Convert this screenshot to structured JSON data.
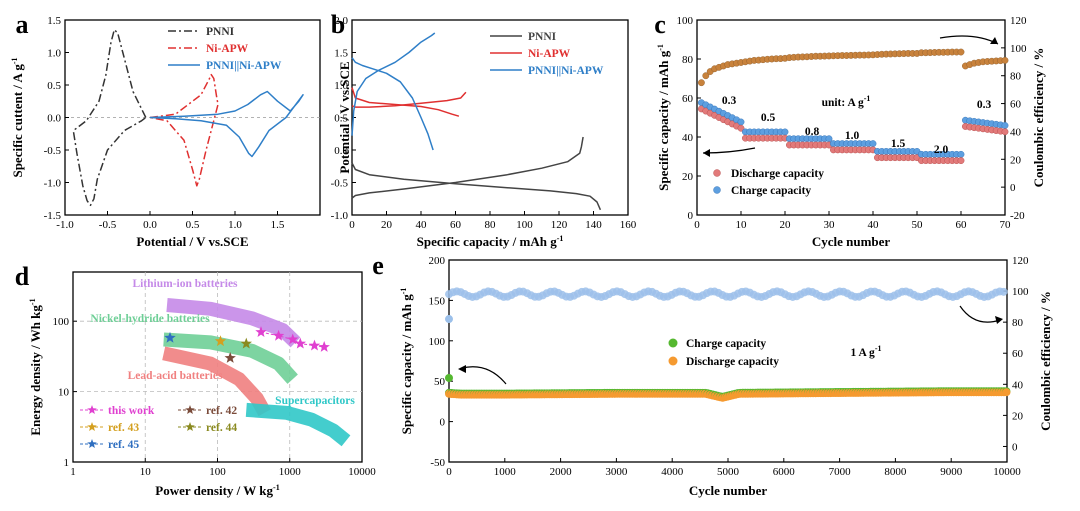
{
  "chart_data": [
    {
      "panel": "a",
      "type": "line",
      "xlabel": "Potential / V vs.SCE",
      "ylabel": "Specific cuttent / A g",
      "ylabel_sup": "-1",
      "xlim": [
        -1.0,
        2.0
      ],
      "ylim": [
        -1.5,
        1.5
      ],
      "xticks": [
        "-1.0",
        "-0.5",
        "0.0",
        "0.5",
        "1.0",
        "1.5"
      ],
      "yticks": [
        "-1.5",
        "-1.0",
        "-0.5",
        "0.0",
        "0.5",
        "1.0",
        "1.5"
      ],
      "series": [
        {
          "name": "PNNI",
          "color": "#333333",
          "dash": "dashdot",
          "x": [
            -0.05,
            -0.2,
            -0.32,
            -0.38,
            -0.42,
            -0.46,
            -0.52,
            -0.6,
            -0.75,
            -0.88,
            -0.9,
            -0.86,
            -0.79,
            -0.74,
            -0.7,
            -0.66,
            -0.62,
            -0.5,
            -0.3,
            -0.1,
            -0.05
          ],
          "y": [
            0.0,
            0.4,
            1.0,
            1.3,
            1.35,
            1.15,
            0.65,
            0.25,
            -0.05,
            -0.18,
            -0.22,
            -0.55,
            -1.05,
            -1.28,
            -1.35,
            -1.25,
            -0.95,
            -0.5,
            -0.2,
            -0.05,
            0.0
          ]
        },
        {
          "name": "Ni-APW",
          "color": "#e03030",
          "dash": "dashdot",
          "x": [
            0.0,
            0.3,
            0.6,
            0.7,
            0.72,
            0.75,
            0.78,
            0.8,
            0.76,
            0.66,
            0.58,
            0.55,
            0.5,
            0.4,
            0.2,
            0.0
          ],
          "y": [
            0.0,
            0.05,
            0.35,
            0.6,
            0.66,
            0.6,
            0.35,
            0.2,
            0.0,
            -0.5,
            -0.95,
            -1.05,
            -0.8,
            -0.35,
            -0.05,
            0.0
          ]
        },
        {
          "name": "PNNI||Ni-APW",
          "color": "#2f7fc8",
          "dash": "solid",
          "x": [
            0.0,
            0.4,
            0.8,
            1.0,
            1.15,
            1.3,
            1.38,
            1.5,
            1.65,
            1.75,
            1.8,
            1.6,
            1.4,
            1.28,
            1.2,
            1.16,
            1.05,
            0.9,
            0.6,
            0.3,
            0.0
          ],
          "y": [
            0.0,
            0.02,
            0.05,
            0.1,
            0.2,
            0.35,
            0.4,
            0.25,
            0.1,
            0.25,
            0.35,
            0.0,
            -0.2,
            -0.45,
            -0.6,
            -0.55,
            -0.3,
            -0.12,
            -0.05,
            -0.02,
            0.0
          ]
        }
      ]
    },
    {
      "panel": "b",
      "type": "line",
      "xlabel": "Specific capacity / mAh g",
      "xlabel_sup": "-1",
      "ylabel": "Potential / V vs.SCE",
      "xlim": [
        0,
        160
      ],
      "ylim": [
        -1.0,
        2.0
      ],
      "xticks": [
        "0",
        "20",
        "40",
        "60",
        "80",
        "100",
        "120",
        "140",
        "160"
      ],
      "yticks": [
        "-1.0",
        "-0.5",
        "0.0",
        "0.5",
        "1.0",
        "1.5",
        "2.0"
      ],
      "series": [
        {
          "name": "PNNI",
          "color": "#444444",
          "dash": "solid",
          "x": [
            0,
            2,
            10,
            30,
            60,
            90,
            110,
            125,
            132,
            133,
            134
          ],
          "y": [
            -0.74,
            -0.7,
            -0.66,
            -0.6,
            -0.5,
            -0.38,
            -0.28,
            -0.18,
            -0.05,
            0.05,
            0.2
          ]
        },
        {
          "name": "PNNI",
          "color": "#444444",
          "dash": "solid",
          "x": [
            0,
            2,
            10,
            30,
            60,
            90,
            115,
            130,
            138,
            142,
            144
          ],
          "y": [
            -0.2,
            -0.3,
            -0.38,
            -0.45,
            -0.52,
            -0.58,
            -0.63,
            -0.67,
            -0.71,
            -0.8,
            -0.92
          ]
        },
        {
          "name": "Ni-APW",
          "color": "#e03030",
          "dash": "solid",
          "x": [
            0,
            2,
            10,
            25,
            40,
            55,
            63,
            66
          ],
          "y": [
            0.68,
            0.66,
            0.66,
            0.68,
            0.72,
            0.76,
            0.8,
            0.89
          ]
        },
        {
          "name": "Ni-APW",
          "color": "#e03030",
          "dash": "solid",
          "x": [
            0,
            2,
            10,
            25,
            40,
            50,
            58,
            62
          ],
          "y": [
            0.96,
            0.8,
            0.73,
            0.7,
            0.67,
            0.62,
            0.55,
            0.52
          ]
        },
        {
          "name": "PNNI||Ni-APW",
          "color": "#2f7fc8",
          "dash": "solid",
          "x": [
            0,
            1,
            3,
            8,
            15,
            25,
            33,
            40,
            46,
            48
          ],
          "y": [
            0.22,
            0.6,
            0.9,
            1.1,
            1.22,
            1.35,
            1.5,
            1.66,
            1.76,
            1.8
          ]
        },
        {
          "name": "PNNI||Ni-APW",
          "color": "#2f7fc8",
          "dash": "solid",
          "x": [
            0,
            2,
            6,
            12,
            20,
            28,
            35,
            40,
            44,
            47
          ],
          "y": [
            1.42,
            1.35,
            1.3,
            1.25,
            1.18,
            1.05,
            0.8,
            0.5,
            0.25,
            0.0
          ]
        }
      ]
    },
    {
      "panel": "c",
      "type": "scatter",
      "xlabel": "Cycle number",
      "ylabel": "Specific capacity / mAh g",
      "ylabel_sup": "-1",
      "y2label": "Coulombic efficiency / %",
      "xlim": [
        0,
        70
      ],
      "ylim": [
        0,
        100
      ],
      "y2lim": [
        -20,
        120
      ],
      "xticks": [
        "0",
        "10",
        "20",
        "30",
        "40",
        "50",
        "60",
        "70"
      ],
      "yticks": [
        "0",
        "20",
        "40",
        "60",
        "80",
        "100"
      ],
      "y2ticks": [
        "-20",
        "0",
        "20",
        "40",
        "60",
        "80",
        "100",
        "120"
      ],
      "rates": [
        "0.3",
        "0.5",
        "0.8",
        "1.0",
        "1.5",
        "2.0",
        "0.3"
      ],
      "rate_segments": [
        [
          1,
          10,
          47
        ],
        [
          11,
          20,
          41
        ],
        [
          21,
          30,
          37.5
        ],
        [
          31,
          40,
          35
        ],
        [
          41,
          50,
          31
        ],
        [
          51,
          60,
          29.5
        ],
        [
          61,
          70,
          45
        ]
      ],
      "unit_label": "unit: A g",
      "unit_sup": "-1",
      "legend": [
        "Discharge capacity",
        "Charge capacity"
      ],
      "discharge_color": "#e27a7a",
      "charge_color": "#5d9fe0",
      "ce_color": "#c8823c",
      "ce_values": [
        75,
        80,
        83,
        85,
        86,
        87,
        88,
        88.5,
        89,
        89.5,
        90,
        90.5,
        91,
        91.2,
        91.5,
        91.8,
        92,
        92.2,
        92.3,
        92.5,
        93,
        93.2,
        93.4,
        93.5,
        93.6,
        93.8,
        94,
        94,
        94.1,
        94.2,
        94.3,
        94.4,
        94.5,
        94.5,
        94.6,
        94.7,
        94.8,
        94.8,
        94.9,
        95,
        95.2,
        95.4,
        95.5,
        95.6,
        95.7,
        95.8,
        95.9,
        96,
        96,
        96,
        96.5,
        96.5,
        96.6,
        96.7,
        96.8,
        96.8,
        96.9,
        97,
        97,
        97,
        87,
        88,
        89,
        89.5,
        90,
        90.2,
        90.4,
        90.6,
        90.8,
        91
      ]
    },
    {
      "panel": "d",
      "type": "scatter",
      "xlabel": "Power density / W kg",
      "xlabel_sup": "-1",
      "ylabel": "Energy density / Wh kg",
      "ylabel_sup": "-1",
      "xscale": "log",
      "yscale": "log",
      "xlim": [
        1,
        10000
      ],
      "ylim": [
        1,
        500
      ],
      "xticks": [
        "1",
        "10",
        "100",
        "1000",
        "10000"
      ],
      "yticks": [
        "1",
        "10",
        "100"
      ],
      "regions": [
        {
          "name": "Lithium-ion batteries",
          "color": "#c58ae8",
          "points": [
            [
              20,
              170
            ],
            [
              80,
              150
            ],
            [
              300,
              110
            ],
            [
              800,
              75
            ],
            [
              1200,
              50
            ]
          ]
        },
        {
          "name": "Nickel-hydride batteries",
          "color": "#6fcf97",
          "points": [
            [
              18,
              55
            ],
            [
              80,
              50
            ],
            [
              300,
              38
            ],
            [
              700,
              25
            ],
            [
              1100,
              15
            ]
          ]
        },
        {
          "name": "Lead-acid batteries",
          "color": "#f08080",
          "points": [
            [
              18,
              35
            ],
            [
              80,
              25
            ],
            [
              200,
              15
            ],
            [
              350,
              8
            ],
            [
              450,
              5
            ]
          ]
        },
        {
          "name": "Supercapacitors",
          "color": "#30c8c8",
          "points": [
            [
              250,
              5.5
            ],
            [
              900,
              5
            ],
            [
              2000,
              4
            ],
            [
              4000,
              2.8
            ],
            [
              6000,
              2
            ]
          ]
        }
      ],
      "this_work": {
        "name": "this work",
        "color": "#e040d0",
        "x": [
          400,
          700,
          1100,
          1400,
          2200,
          3000
        ],
        "y": [
          70,
          62,
          55,
          48,
          45,
          43
        ]
      },
      "refs": [
        {
          "name": "ref. 42",
          "color": "#7a4b3a",
          "x": [
            150
          ],
          "y": [
            30
          ]
        },
        {
          "name": "ref. 43",
          "color": "#d4a020",
          "x": [
            110
          ],
          "y": [
            52
          ]
        },
        {
          "name": "ref. 44",
          "color": "#8a8a20",
          "x": [
            250
          ],
          "y": [
            48
          ]
        },
        {
          "name": "ref. 45",
          "color": "#2f6fc0",
          "x": [
            22
          ],
          "y": [
            58
          ]
        }
      ]
    },
    {
      "panel": "e",
      "type": "scatter",
      "xlabel": "Cycle number",
      "ylabel": "Specific capacity / mAh g",
      "ylabel_sup": "-1",
      "y2label": "Coulombic efficiency / %",
      "xlim": [
        0,
        10000
      ],
      "ylim": [
        -50,
        200
      ],
      "y2lim": [
        -10,
        120
      ],
      "xticks": [
        "0",
        "1000",
        "2000",
        "3000",
        "4000",
        "5000",
        "6000",
        "7000",
        "8000",
        "9000",
        "10000"
      ],
      "yticks": [
        "-50",
        "0",
        "50",
        "100",
        "150",
        "200"
      ],
      "y2ticks": [
        "0",
        "20",
        "40",
        "60",
        "80",
        "100",
        "120"
      ],
      "rate_label": "1 A g",
      "rate_sup": "-1",
      "legend": [
        "Charge capacity",
        "Discharge capacity"
      ],
      "charge_color": "#55b830",
      "discharge_color": "#f59a30",
      "ce_color": "#9cc0ea",
      "capacity_trend": {
        "x": [
          0,
          200,
          1000,
          3000,
          4600,
          4900,
          5200,
          7000,
          9000,
          10000
        ],
        "y": [
          35,
          34,
          34,
          35,
          35,
          30,
          35,
          36,
          37,
          37
        ]
      },
      "ce_trend": {
        "x": [
          0,
          10000
        ],
        "y": [
          98,
          98
        ]
      }
    }
  ]
}
